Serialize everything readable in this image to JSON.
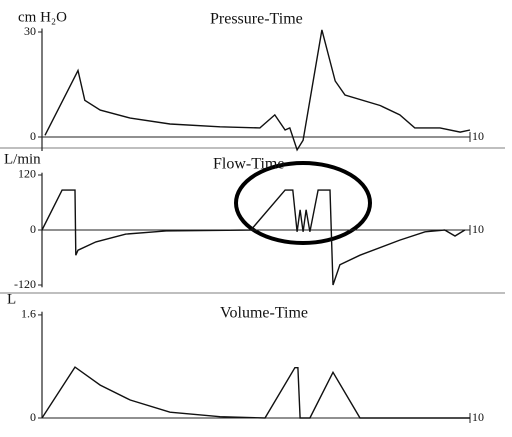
{
  "chart_data": [
    {
      "type": "line",
      "title": "Pressure-Time",
      "y_label": "cm H₂O",
      "color": "#111111",
      "x": [
        0.07,
        0.84,
        1.0,
        1.36,
        2.06,
        2.99,
        4.16,
        5.09,
        5.44,
        5.68,
        5.79,
        5.96,
        6.1,
        6.54,
        6.85,
        7.08,
        7.9,
        8.36,
        8.71,
        9.3,
        9.77,
        10
      ],
      "values": [
        0.5,
        19,
        10.5,
        7.7,
        5.4,
        3.7,
        2.9,
        2.6,
        6.3,
        2,
        2.6,
        -3.7,
        -0.9,
        30.6,
        16,
        12,
        9,
        6.3,
        2.6,
        2.6,
        1.4,
        2
      ],
      "xlim": [
        0,
        10
      ],
      "xticks": [
        10
      ],
      "ylim": [
        -4,
        31
      ],
      "yticks": [
        0,
        30
      ]
    },
    {
      "type": "line",
      "title": "Flow-Time",
      "y_label": "L/min",
      "color": "#111111",
      "x": [
        0,
        0.47,
        0.77,
        0.79,
        0.84,
        1.26,
        1.96,
        2.9,
        4.88,
        5.68,
        5.86,
        5.96,
        6.03,
        6.1,
        6.17,
        6.26,
        6.45,
        6.73,
        6.8,
        6.96,
        7.43,
        8.36,
        8.95,
        9.41,
        9.65,
        9.88
      ],
      "values": [
        0,
        87,
        87,
        -55,
        -44,
        -26,
        -9,
        -2,
        0,
        87,
        87,
        -4,
        44,
        -4,
        44,
        -4,
        87,
        87,
        -120,
        -76,
        -55,
        -22,
        -4,
        0,
        -13,
        0
      ],
      "xlim": [
        0,
        10
      ],
      "xticks": [
        10
      ],
      "ylim": [
        -125,
        125
      ],
      "yticks": [
        -120,
        0,
        120
      ]
    },
    {
      "type": "line",
      "title": "Volume-Time",
      "y_label": "L",
      "color": "#111111",
      "x": [
        0,
        0.77,
        1.36,
        2.06,
        2.99,
        4.16,
        5.21,
        5.91,
        5.98,
        6.03,
        6.26,
        6.8,
        7.43,
        10
      ],
      "values": [
        0,
        0.79,
        0.51,
        0.28,
        0.09,
        0.02,
        0,
        0.78,
        0.78,
        0,
        0,
        0.71,
        0,
        0
      ],
      "xlim": [
        0,
        10
      ],
      "xticks": [
        10
      ],
      "ylim": [
        0,
        1.65
      ],
      "yticks": [
        0,
        1.6
      ]
    }
  ]
}
